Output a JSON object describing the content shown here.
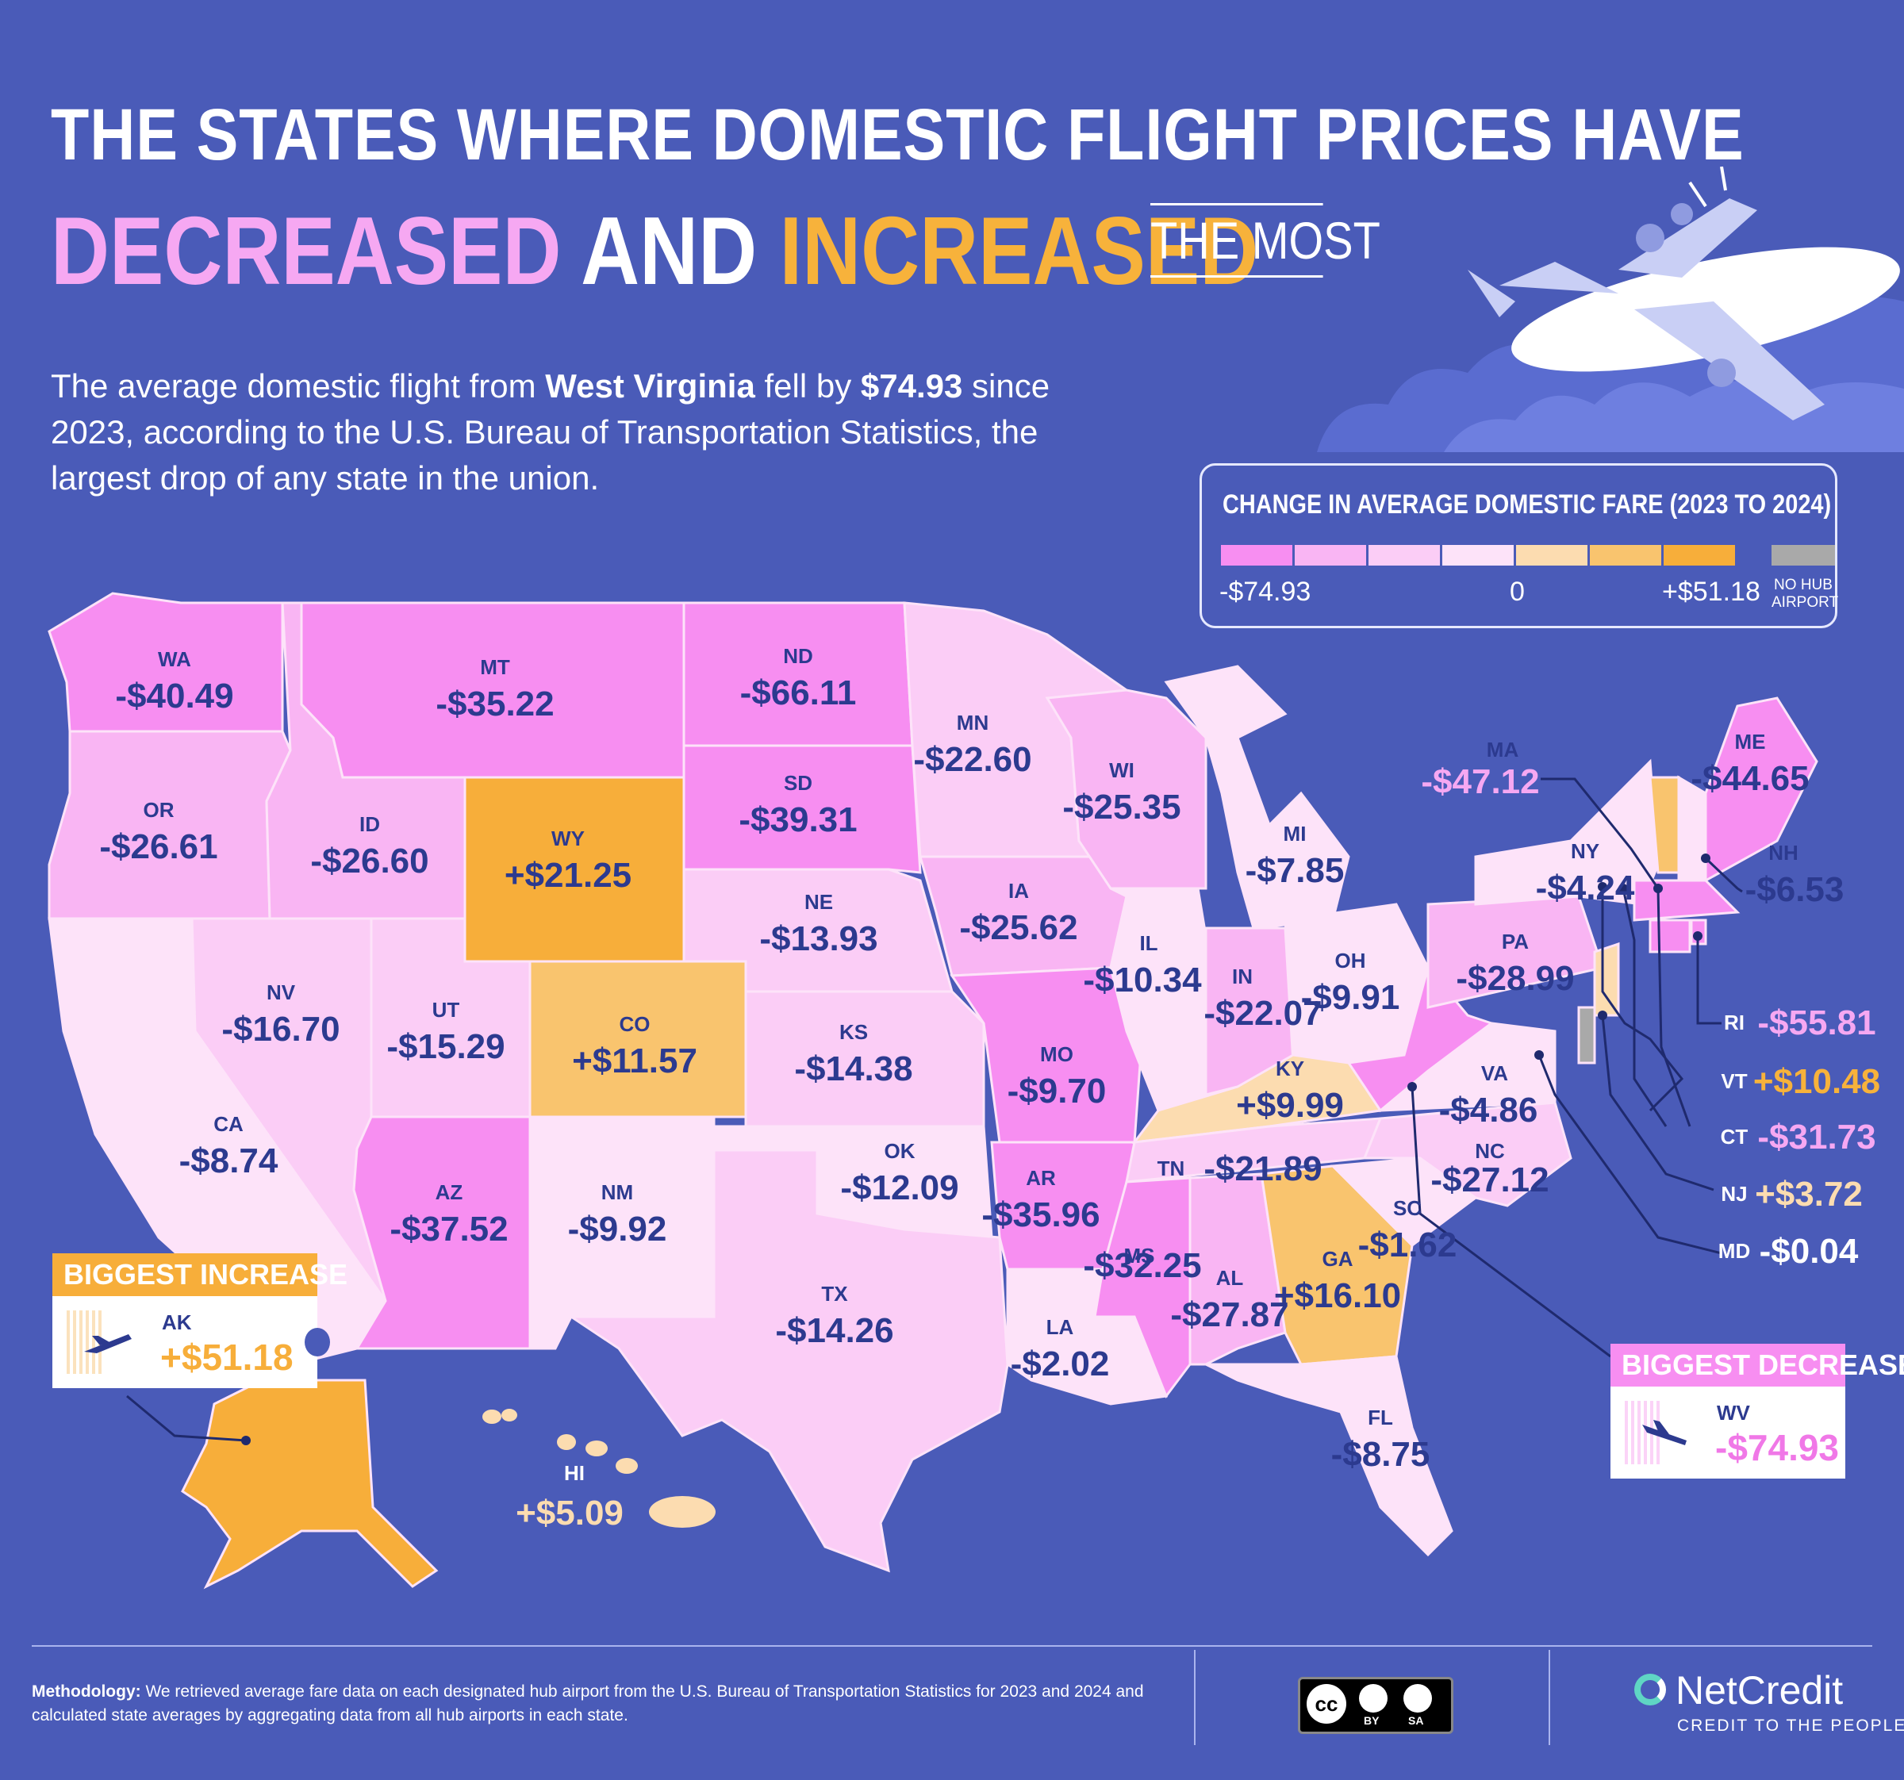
{
  "title": {
    "line1": "THE STATES WHERE DOMESTIC FLIGHT PRICES HAVE",
    "decreased": "DECREASED",
    "and": "AND",
    "increased": "INCREASED",
    "the_most": "THE MOST"
  },
  "intro": {
    "part1": "The average domestic flight from ",
    "state": "West Virginia",
    "part2": " fell by ",
    "amount": "$74.93",
    "part3": " since 2023, according to the U.S. Bureau of Transportation Statistics, the largest drop of any state in the union."
  },
  "legend": {
    "title": "CHANGE IN AVERAGE DOMESTIC FARE (2023 TO 2024)",
    "min_label": "-$74.93",
    "zero_label": "0",
    "max_label": "+$51.18",
    "no_hub_line1": "NO HUB",
    "no_hub_line2": "AIRPORT",
    "colors": [
      "#f78ef1",
      "#f9b5f3",
      "#fbcdf6",
      "#fde3f9",
      "#fcdcb0",
      "#f9c46e",
      "#f7ae3a"
    ],
    "no_hub_color": "#a9a9a9"
  },
  "states": [
    {
      "abbr": "WA",
      "value": "-$40.49",
      "color": "#f78ef1"
    },
    {
      "abbr": "MT",
      "value": "-$35.22",
      "color": "#f78ef1"
    },
    {
      "abbr": "ND",
      "value": "-$66.11",
      "color": "#f78ef1"
    },
    {
      "abbr": "MN",
      "value": "-$22.60",
      "color": "#fbcdf6"
    },
    {
      "abbr": "OR",
      "value": "-$26.61",
      "color": "#f9b5f3"
    },
    {
      "abbr": "ID",
      "value": "-$26.60",
      "color": "#f9b5f3"
    },
    {
      "abbr": "WY",
      "value": "+$21.25",
      "color": "#f7ae3a"
    },
    {
      "abbr": "SD",
      "value": "-$39.31",
      "color": "#f78ef1"
    },
    {
      "abbr": "WI",
      "value": "-$25.35",
      "color": "#f9b5f3"
    },
    {
      "abbr": "MI",
      "value": "-$7.85",
      "color": "#fde3f9"
    },
    {
      "abbr": "IA",
      "value": "-$25.62",
      "color": "#f9b5f3"
    },
    {
      "abbr": "NE",
      "value": "-$13.93",
      "color": "#fbcdf6"
    },
    {
      "abbr": "IL",
      "value": "-$10.34",
      "color": "#fde3f9"
    },
    {
      "abbr": "IN",
      "value": "-$22.07",
      "color": "#f9b5f3"
    },
    {
      "abbr": "OH",
      "value": "-$9.91",
      "color": "#fde3f9"
    },
    {
      "abbr": "PA",
      "value": "-$28.99",
      "color": "#f9b5f3"
    },
    {
      "abbr": "NY",
      "value": "-$4.24",
      "color": "#fde3f9"
    },
    {
      "abbr": "NV",
      "value": "-$16.70",
      "color": "#fbcdf6"
    },
    {
      "abbr": "UT",
      "value": "-$15.29",
      "color": "#fbcdf6"
    },
    {
      "abbr": "CO",
      "value": "+$11.57",
      "color": "#f9c46e"
    },
    {
      "abbr": "KS",
      "value": "-$14.38",
      "color": "#fbcdf6"
    },
    {
      "abbr": "MO",
      "value": "-$9.70",
      "color": "#f78ef1"
    },
    {
      "abbr": "KY",
      "value": "+$9.99",
      "color": "#fcdcb0"
    },
    {
      "abbr": "VA",
      "value": "-$4.86",
      "color": "#fde3f9"
    },
    {
      "abbr": "CA",
      "value": "-$8.74",
      "color": "#fde3f9"
    },
    {
      "abbr": "AZ",
      "value": "-$37.52",
      "color": "#f78ef1"
    },
    {
      "abbr": "NM",
      "value": "-$9.92",
      "color": "#fde3f9"
    },
    {
      "abbr": "OK",
      "value": "-$12.09",
      "color": "#fde3f9"
    },
    {
      "abbr": "AR",
      "value": "-$35.96",
      "color": "#f78ef1"
    },
    {
      "abbr": "TN",
      "value": "-$21.89",
      "color": "#fbcdf6"
    },
    {
      "abbr": "NC",
      "value": "-$27.12",
      "color": "#fbcdf6"
    },
    {
      "abbr": "SC",
      "value": "-$1.62",
      "color": "#fde3f9"
    },
    {
      "abbr": "MS",
      "value": "-$32.25",
      "color": "#f78ef1"
    },
    {
      "abbr": "AL",
      "value": "-$27.87",
      "color": "#f9b5f3"
    },
    {
      "abbr": "GA",
      "value": "+$16.10",
      "color": "#f9c46e"
    },
    {
      "abbr": "TX",
      "value": "-$14.26",
      "color": "#fbcdf6"
    },
    {
      "abbr": "LA",
      "value": "-$2.02",
      "color": "#fde3f9"
    },
    {
      "abbr": "FL",
      "value": "-$8.75",
      "color": "#fde3f9"
    },
    {
      "abbr": "ME",
      "value": "-$44.65",
      "color": "#f78ef1"
    },
    {
      "abbr": "NH",
      "value": "-$6.53",
      "color": "#fde3f9"
    },
    {
      "abbr": "MA",
      "value": "-$47.12",
      "color": "#f78ef1"
    },
    {
      "abbr": "RI",
      "value": "-$55.81",
      "color": "#f78ef1"
    },
    {
      "abbr": "VT",
      "value": "+$10.48",
      "color": "#f9c46e"
    },
    {
      "abbr": "CT",
      "value": "-$31.73",
      "color": "#f78ef1"
    },
    {
      "abbr": "NJ",
      "value": "+$3.72",
      "color": "#fcdcb0"
    },
    {
      "abbr": "MD",
      "value": "-$0.04",
      "color": "#fde3f9"
    },
    {
      "abbr": "HI",
      "value": "+$5.09",
      "color": "#fcdcb0"
    },
    {
      "abbr": "WV",
      "value": "-$74.93",
      "color": "#f78ef1"
    },
    {
      "abbr": "AK",
      "value": "+$51.18",
      "color": "#f7ae3a"
    }
  ],
  "callouts": {
    "increase": {
      "heading": "BIGGEST INCREASE",
      "abbr": "AK",
      "value": "+$51.18"
    },
    "decrease": {
      "heading": "BIGGEST DECREASE",
      "abbr": "WV",
      "value": "-$74.93"
    }
  },
  "footer": {
    "methodology_label": "Methodology:",
    "methodology_text": " We retrieved average fare data on each designated hub airport from the U.S. Bureau of Transportation Statistics for 2023 and 2024 and calculated state averages by aggregating data from all hub airports in each state.",
    "license_cc": "cc",
    "license_by": "BY",
    "license_sa": "SA",
    "brand": "NetCredit",
    "tagline": "CREDIT TO THE PEOPLE"
  }
}
